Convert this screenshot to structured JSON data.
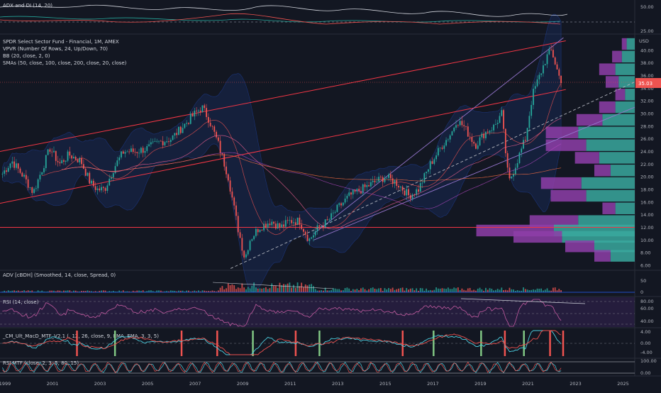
{
  "panes": {
    "adx": {
      "title": "ADX and DI (14, 20)",
      "ticks": [
        "50.00",
        "25.00"
      ]
    },
    "main": {
      "legend": [
        "SPDR Select Sector Fund - Financial, 1M, AMEX",
        "VPVR (Number Of Rows, 24, Up/Down, 70)",
        "BB (20, close, 2, 0)",
        "SMAs (50, close, 100, close, 200, close, 20, close)"
      ],
      "currency": "USD",
      "price_ticks": [
        "40.00",
        "38.00",
        "36.00",
        "34.00",
        "32.00",
        "30.00",
        "28.00",
        "26.00",
        "24.00",
        "22.00",
        "20.00",
        "18.00",
        "16.00",
        "14.00",
        "12.00",
        "10.00",
        "8.00",
        "6.00"
      ],
      "last_price": "35.03"
    },
    "adv": {
      "title": "ADV [cBDH] (Smoothed, 14, close, Spread, 0)",
      "ticks": [
        "50",
        "0"
      ]
    },
    "rsi": {
      "title": "RSI (14, close)",
      "ticks": [
        "80.00",
        "60.00",
        "40.00"
      ]
    },
    "macd": {
      "title": "_CM_Ult_MacD_MTF_V2.1 (, 12, 26, close, 9, EMA, EMA, 3, 3, 5)",
      "ticks": [
        "4.00",
        "0.00",
        "-4.00"
      ]
    },
    "rsimtf": {
      "title": "RSI MTF (close, 2, 3, 5, 80, 15)",
      "ticks": [
        "100.00",
        "0.00"
      ]
    }
  },
  "time_axis": [
    "1999",
    "2001",
    "2003",
    "2005",
    "2007",
    "2009",
    "2011",
    "2013",
    "2015",
    "2017",
    "2019",
    "2021",
    "2023",
    "2025"
  ],
  "colors": {
    "background": "#131722",
    "up": "#26a69a",
    "down": "#ef5350",
    "channel": "#f23645",
    "trend": "#9575cd",
    "vp_up": "#3aa89d",
    "vp_down": "#8e3ea8"
  },
  "chart_data": {
    "type": "candlestick",
    "title": "SPDR Select Sector Fund - Financial, 1M, AMEX",
    "x_range": [
      1998.8,
      2025.5
    ],
    "y_range": [
      5,
      42
    ],
    "close_path": [
      [
        1998.9,
        20.5
      ],
      [
        1999.3,
        22.5
      ],
      [
        1999.8,
        20
      ],
      [
        2000.2,
        17.5
      ],
      [
        2000.6,
        21.5
      ],
      [
        2000.9,
        24.5
      ],
      [
        2001.3,
        22
      ],
      [
        2001.7,
        23.5
      ],
      [
        2002.2,
        22.5
      ],
      [
        2002.6,
        19
      ],
      [
        2002.9,
        18
      ],
      [
        2003.2,
        18
      ],
      [
        2003.6,
        21.5
      ],
      [
        2004.0,
        24
      ],
      [
        2004.5,
        24
      ],
      [
        2005.0,
        24.5
      ],
      [
        2005.5,
        25.5
      ],
      [
        2006.0,
        26
      ],
      [
        2006.5,
        28
      ],
      [
        2007.0,
        30
      ],
      [
        2007.3,
        31
      ],
      [
        2007.6,
        29
      ],
      [
        2008.0,
        25
      ],
      [
        2008.4,
        20
      ],
      [
        2008.8,
        12
      ],
      [
        2009.1,
        7
      ],
      [
        2009.3,
        10
      ],
      [
        2009.7,
        12
      ],
      [
        2010.2,
        13
      ],
      [
        2010.6,
        12
      ],
      [
        2011.0,
        13
      ],
      [
        2011.4,
        13
      ],
      [
        2011.8,
        10
      ],
      [
        2012.2,
        12
      ],
      [
        2012.6,
        13
      ],
      [
        2013.0,
        15
      ],
      [
        2013.5,
        17
      ],
      [
        2014.0,
        18
      ],
      [
        2014.5,
        19
      ],
      [
        2015.0,
        20
      ],
      [
        2015.5,
        19
      ],
      [
        2016.0,
        17
      ],
      [
        2016.4,
        18
      ],
      [
        2016.9,
        22
      ],
      [
        2017.4,
        25
      ],
      [
        2017.8,
        27
      ],
      [
        2018.0,
        29
      ],
      [
        2018.3,
        28
      ],
      [
        2018.8,
        25
      ],
      [
        2019.2,
        27
      ],
      [
        2019.6,
        28
      ],
      [
        2019.9,
        30
      ],
      [
        2020.2,
        19
      ],
      [
        2020.5,
        22
      ],
      [
        2020.9,
        26
      ],
      [
        2021.2,
        33
      ],
      [
        2021.5,
        36
      ],
      [
        2021.8,
        39
      ],
      [
        2022.0,
        40
      ],
      [
        2022.3,
        36
      ],
      [
        2022.45,
        35.03
      ]
    ],
    "volume_profile": [
      {
        "price": 41,
        "up": 0.05,
        "down": 0.03
      },
      {
        "price": 39,
        "up": 0.08,
        "down": 0.06
      },
      {
        "price": 37,
        "up": 0.12,
        "down": 0.1
      },
      {
        "price": 35,
        "up": 0.1,
        "down": 0.08
      },
      {
        "price": 33,
        "up": 0.06,
        "down": 0.06
      },
      {
        "price": 31,
        "up": 0.12,
        "down": 0.1
      },
      {
        "price": 29,
        "up": 0.2,
        "down": 0.16
      },
      {
        "price": 27,
        "up": 0.35,
        "down": 0.2
      },
      {
        "price": 25,
        "up": 0.3,
        "down": 0.25
      },
      {
        "price": 23,
        "up": 0.22,
        "down": 0.15
      },
      {
        "price": 21,
        "up": 0.15,
        "down": 0.1
      },
      {
        "price": 19,
        "up": 0.33,
        "down": 0.25
      },
      {
        "price": 17,
        "up": 0.3,
        "down": 0.22
      },
      {
        "price": 15,
        "up": 0.12,
        "down": 0.08
      },
      {
        "price": 13,
        "up": 0.35,
        "down": 0.3
      },
      {
        "price": 11.5,
        "up": 0.5,
        "down": 0.48
      },
      {
        "price": 10.5,
        "up": 0.45,
        "down": 0.3
      },
      {
        "price": 9,
        "up": 0.25,
        "down": 0.18
      },
      {
        "price": 7.5,
        "up": 0.15,
        "down": 0.1
      }
    ],
    "channel_lines": [
      {
        "name": "upper",
        "from": [
          1998.8,
          24
        ],
        "to": [
          2022.6,
          41.5
        ]
      },
      {
        "name": "lower",
        "from": [
          1998.8,
          15.8
        ],
        "to": [
          2022.6,
          33.8
        ]
      },
      {
        "name": "support",
        "from": [
          1998.8,
          12
        ],
        "to": [
          2025.5,
          12
        ]
      }
    ],
    "trend_lines": [
      {
        "from": [
          2012.0,
          11
        ],
        "to": [
          2022.5,
          42
        ]
      },
      {
        "from": [
          2012.0,
          10
        ],
        "to": [
          2025.5,
          31
        ]
      },
      {
        "from": [
          2008.5,
          5.5
        ],
        "to": [
          2025.5,
          35
        ]
      }
    ]
  }
}
